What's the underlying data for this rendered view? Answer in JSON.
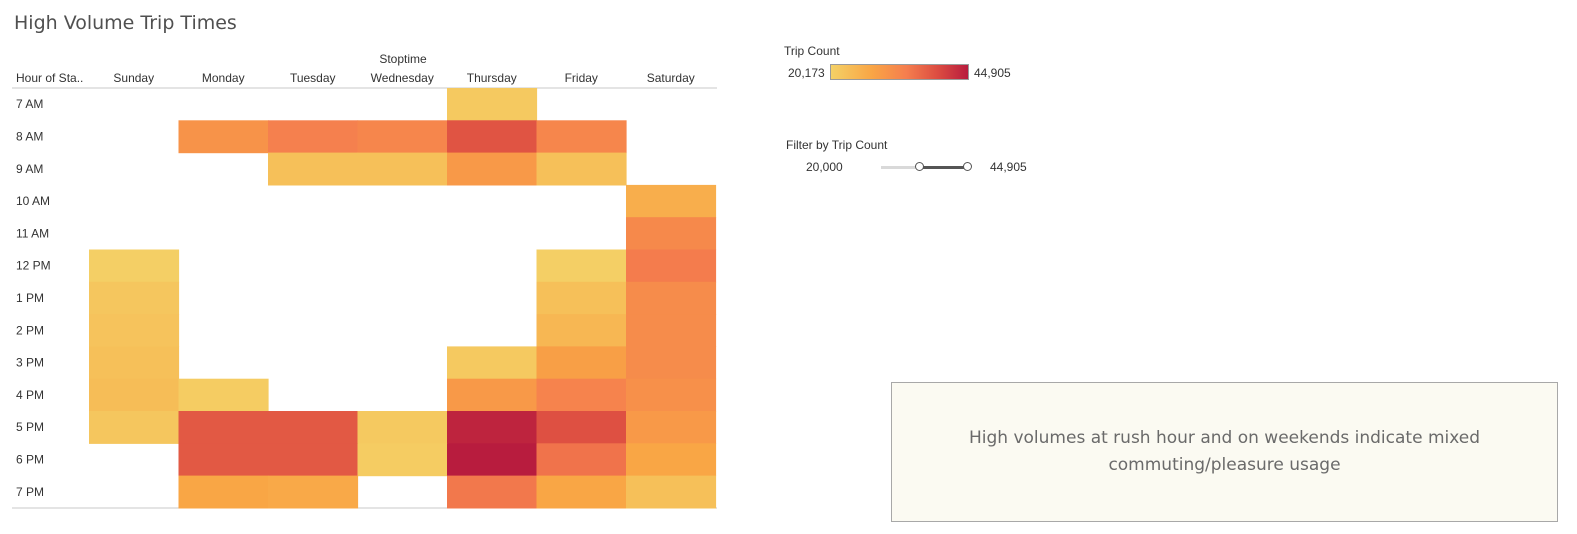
{
  "title": "High Volume Trip Times",
  "colors": {
    "scale_low": "#f4d166",
    "scale_mid1": "#f9a545",
    "scale_mid2": "#f57e4e",
    "scale_mid3": "#dc4c41",
    "scale_high": "#b81c3e"
  },
  "legend": {
    "title": "Trip Count",
    "min_label": "20,173",
    "max_label": "44,905",
    "min_value": 20173,
    "max_value": 44905
  },
  "filter": {
    "title": "Filter by Trip Count",
    "min_label": "20,000",
    "max_label": "44,905",
    "range_min": 0,
    "range_max": 44905,
    "selected_min": 20000,
    "selected_max": 44905
  },
  "note": {
    "text": "High volumes at rush hour and on weekends indicate mixed commuting/pleasure usage"
  },
  "chart_data": {
    "type": "heatmap",
    "column_group_label": "Stoptime",
    "row_header_label": "Hour of Sta..",
    "columns": [
      "Sunday",
      "Monday",
      "Tuesday",
      "Wednesday",
      "Thursday",
      "Friday",
      "Saturday"
    ],
    "rows": [
      "7 AM",
      "8 AM",
      "9 AM",
      "10 AM",
      "11 AM",
      "12 PM",
      "1 PM",
      "2 PM",
      "3 PM",
      "4 PM",
      "5 PM",
      "6 PM",
      "7 PM"
    ],
    "values": [
      [
        null,
        null,
        null,
        null,
        21500,
        null,
        null
      ],
      [
        null,
        30500,
        33500,
        32500,
        38500,
        32500,
        null
      ],
      [
        null,
        null,
        23000,
        23000,
        29500,
        23000,
        null
      ],
      [
        null,
        null,
        null,
        null,
        null,
        null,
        26000
      ],
      [
        null,
        null,
        null,
        null,
        null,
        null,
        32000
      ],
      [
        20500,
        null,
        null,
        null,
        null,
        20500,
        34000
      ],
      [
        22000,
        null,
        null,
        null,
        null,
        23000,
        31500
      ],
      [
        22500,
        null,
        null,
        null,
        null,
        24500,
        31500
      ],
      [
        23000,
        null,
        null,
        null,
        21500,
        28500,
        31500
      ],
      [
        23500,
        21000,
        null,
        null,
        29500,
        33000,
        31000
      ],
      [
        22000,
        38000,
        38000,
        21500,
        44000,
        39000,
        29500
      ],
      [
        null,
        38000,
        38000,
        21000,
        44905,
        35000,
        27500
      ],
      [
        null,
        27500,
        27000,
        null,
        34500,
        27500,
        23000
      ]
    ],
    "color_min": 20173,
    "color_max": 44905
  }
}
